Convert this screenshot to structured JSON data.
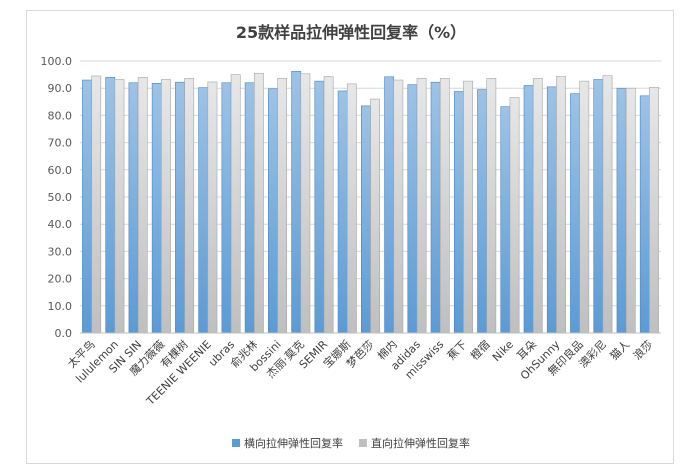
{
  "chart_data": {
    "type": "bar",
    "title": "25款样品拉伸弹性回复率（%）",
    "categories": [
      "太平鸟",
      "lululemon",
      "SIN SIN",
      "魔力薇薇",
      "有棵树",
      "TEENIE WEENIE",
      "ubras",
      "俞兆林",
      "bossini",
      "杰丽·莫克",
      "SEMIR",
      "宝娜斯",
      "梦芭莎",
      "棉内",
      "adidas",
      "misswiss",
      "蕉下",
      "橙宿",
      "Nike",
      "耳朵",
      "OhSunny",
      "無印良品",
      "澳彩尼",
      "猫人",
      "浪莎"
    ],
    "series": [
      {
        "name": "横向拉伸弹性回复率",
        "color": "#5b9bd5",
        "values": [
          93.0,
          94.0,
          92.0,
          91.8,
          92.2,
          90.2,
          92.0,
          92.0,
          89.8,
          96.2,
          92.6,
          89.0,
          83.5,
          94.2,
          91.3,
          92.2,
          88.8,
          89.5,
          83.2,
          91.0,
          90.5,
          88.0,
          93.2,
          90.0,
          87.2
        ]
      },
      {
        "name": "直向拉伸弹性回复率",
        "color": "#bfbfbf",
        "values": [
          94.5,
          93.2,
          94.0,
          93.2,
          93.6,
          92.3,
          95.0,
          95.5,
          93.6,
          95.3,
          94.3,
          91.6,
          86.0,
          93.0,
          93.6,
          93.6,
          92.6,
          93.6,
          86.6,
          93.6,
          94.3,
          92.6,
          94.6,
          90.0,
          90.3
        ]
      }
    ],
    "ylim": [
      0,
      100
    ],
    "yticks": [
      "0.0",
      "10.0",
      "20.0",
      "30.0",
      "40.0",
      "50.0",
      "60.0",
      "70.0",
      "80.0",
      "90.0",
      "100.0"
    ],
    "grid": true,
    "legend_position": "bottom"
  }
}
